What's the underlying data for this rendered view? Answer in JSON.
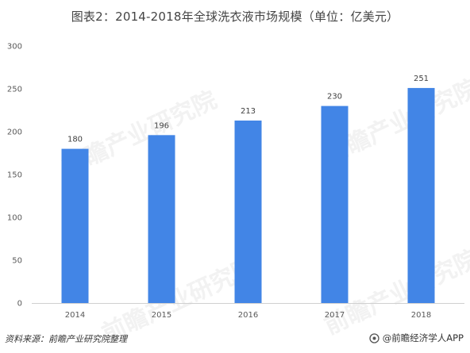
{
  "title": "图表2：2014-2018年全球洗衣液市场规模（单位：亿美元）",
  "chart_data": {
    "type": "bar",
    "categories": [
      "2014",
      "2015",
      "2016",
      "2017",
      "2018"
    ],
    "values": [
      180,
      196,
      213,
      230,
      251
    ],
    "title": "图表2：2014-2018年全球洗衣液市场规模（单位：亿美元）",
    "xlabel": "",
    "ylabel": "",
    "ylim": [
      0,
      300
    ],
    "yticks": [
      0,
      50,
      100,
      150,
      200,
      250,
      300
    ],
    "grid": false,
    "legend": "none",
    "bar_color": "#4285e6"
  },
  "watermark": "前瞻产业研究院",
  "source": "资料来源：前瞻产业研究院整理",
  "credit": "@前瞻经济学人APP",
  "colors": {
    "bar": "#4285e6",
    "axis": "#d0d0d0",
    "watermark": "#f2f2f2"
  }
}
